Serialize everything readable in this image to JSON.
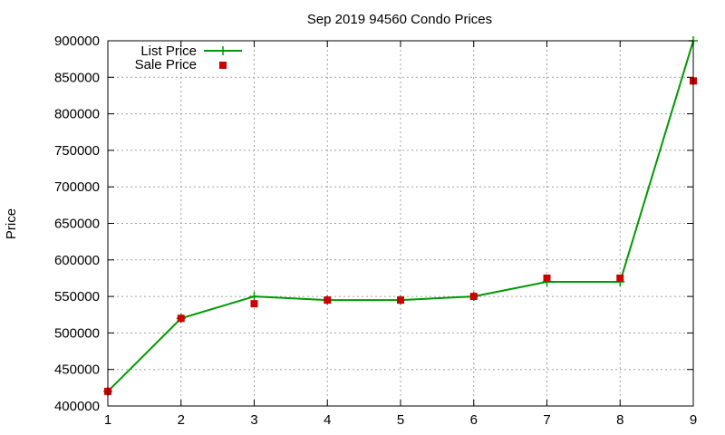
{
  "chart_data": {
    "type": "line",
    "title": "Sep 2019 94560 Condo Prices",
    "xlabel": "",
    "ylabel": "Price",
    "x": [
      1,
      2,
      3,
      4,
      5,
      6,
      7,
      8,
      9
    ],
    "xlim": [
      1,
      9
    ],
    "ylim": [
      400000,
      900000
    ],
    "xticks": [
      "1",
      "2",
      "3",
      "4",
      "5",
      "6",
      "7",
      "8",
      "9"
    ],
    "yticks": [
      "400000",
      "450000",
      "500000",
      "550000",
      "600000",
      "650000",
      "700000",
      "750000",
      "800000",
      "850000",
      "900000"
    ],
    "grid": true,
    "legend_position": "top-left",
    "series": [
      {
        "name": "List Price",
        "style": "line-with-cross-markers",
        "color": "#009900",
        "values": [
          420000,
          520000,
          550000,
          545000,
          545000,
          550000,
          570000,
          570000,
          900000
        ]
      },
      {
        "name": "Sale Price",
        "style": "square-markers",
        "color": "#cc0000",
        "values": [
          420000,
          520000,
          540000,
          545000,
          545000,
          550000,
          575000,
          575000,
          845000
        ]
      }
    ]
  }
}
